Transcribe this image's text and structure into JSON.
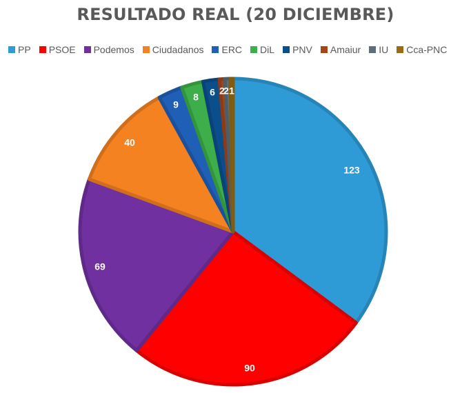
{
  "chart_data": {
    "type": "pie",
    "title": "RESULTADO REAL (20 DICIEMBRE)",
    "categories": [
      "PP",
      "PSOE",
      "Podemos",
      "Ciudadanos",
      "ERC",
      "DiL",
      "PNV",
      "Amaiur",
      "IU",
      "Cca-PNC"
    ],
    "values": [
      123,
      90,
      69,
      40,
      9,
      8,
      6,
      2,
      2,
      1
    ],
    "colors": [
      "#2E9BD6",
      "#FF0000",
      "#7030A0",
      "#F58220",
      "#1F5FB5",
      "#3DAE49",
      "#0A4F8C",
      "#A5451A",
      "#5B6E7A",
      "#9A6B12"
    ],
    "legend_position": "top",
    "start_angle": "12 o'clock, clockwise",
    "data_labels": true
  }
}
